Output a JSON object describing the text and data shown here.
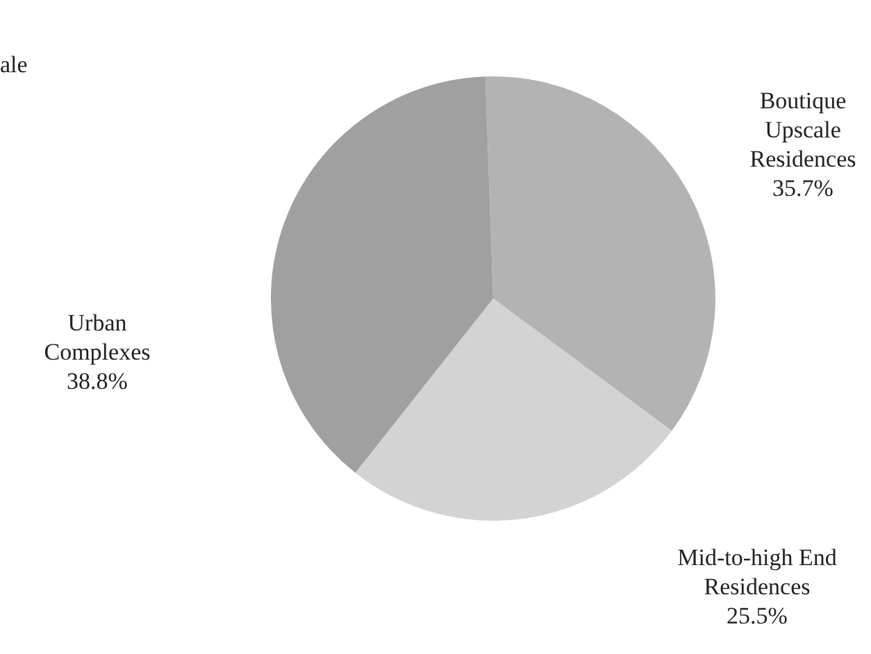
{
  "chart_data": {
    "type": "pie",
    "categories": [
      "Boutique Upscale Residences",
      "Mid-to-high End Residences",
      "Urban Complexes"
    ],
    "values": [
      35.7,
      25.5,
      38.8
    ],
    "colors": [
      "#b3b3b3",
      "#d3d3d3",
      "#a0a0a0"
    ],
    "value_labels": [
      "35.7%",
      "25.5%",
      "38.8%"
    ],
    "annotations": [
      "ale"
    ]
  }
}
